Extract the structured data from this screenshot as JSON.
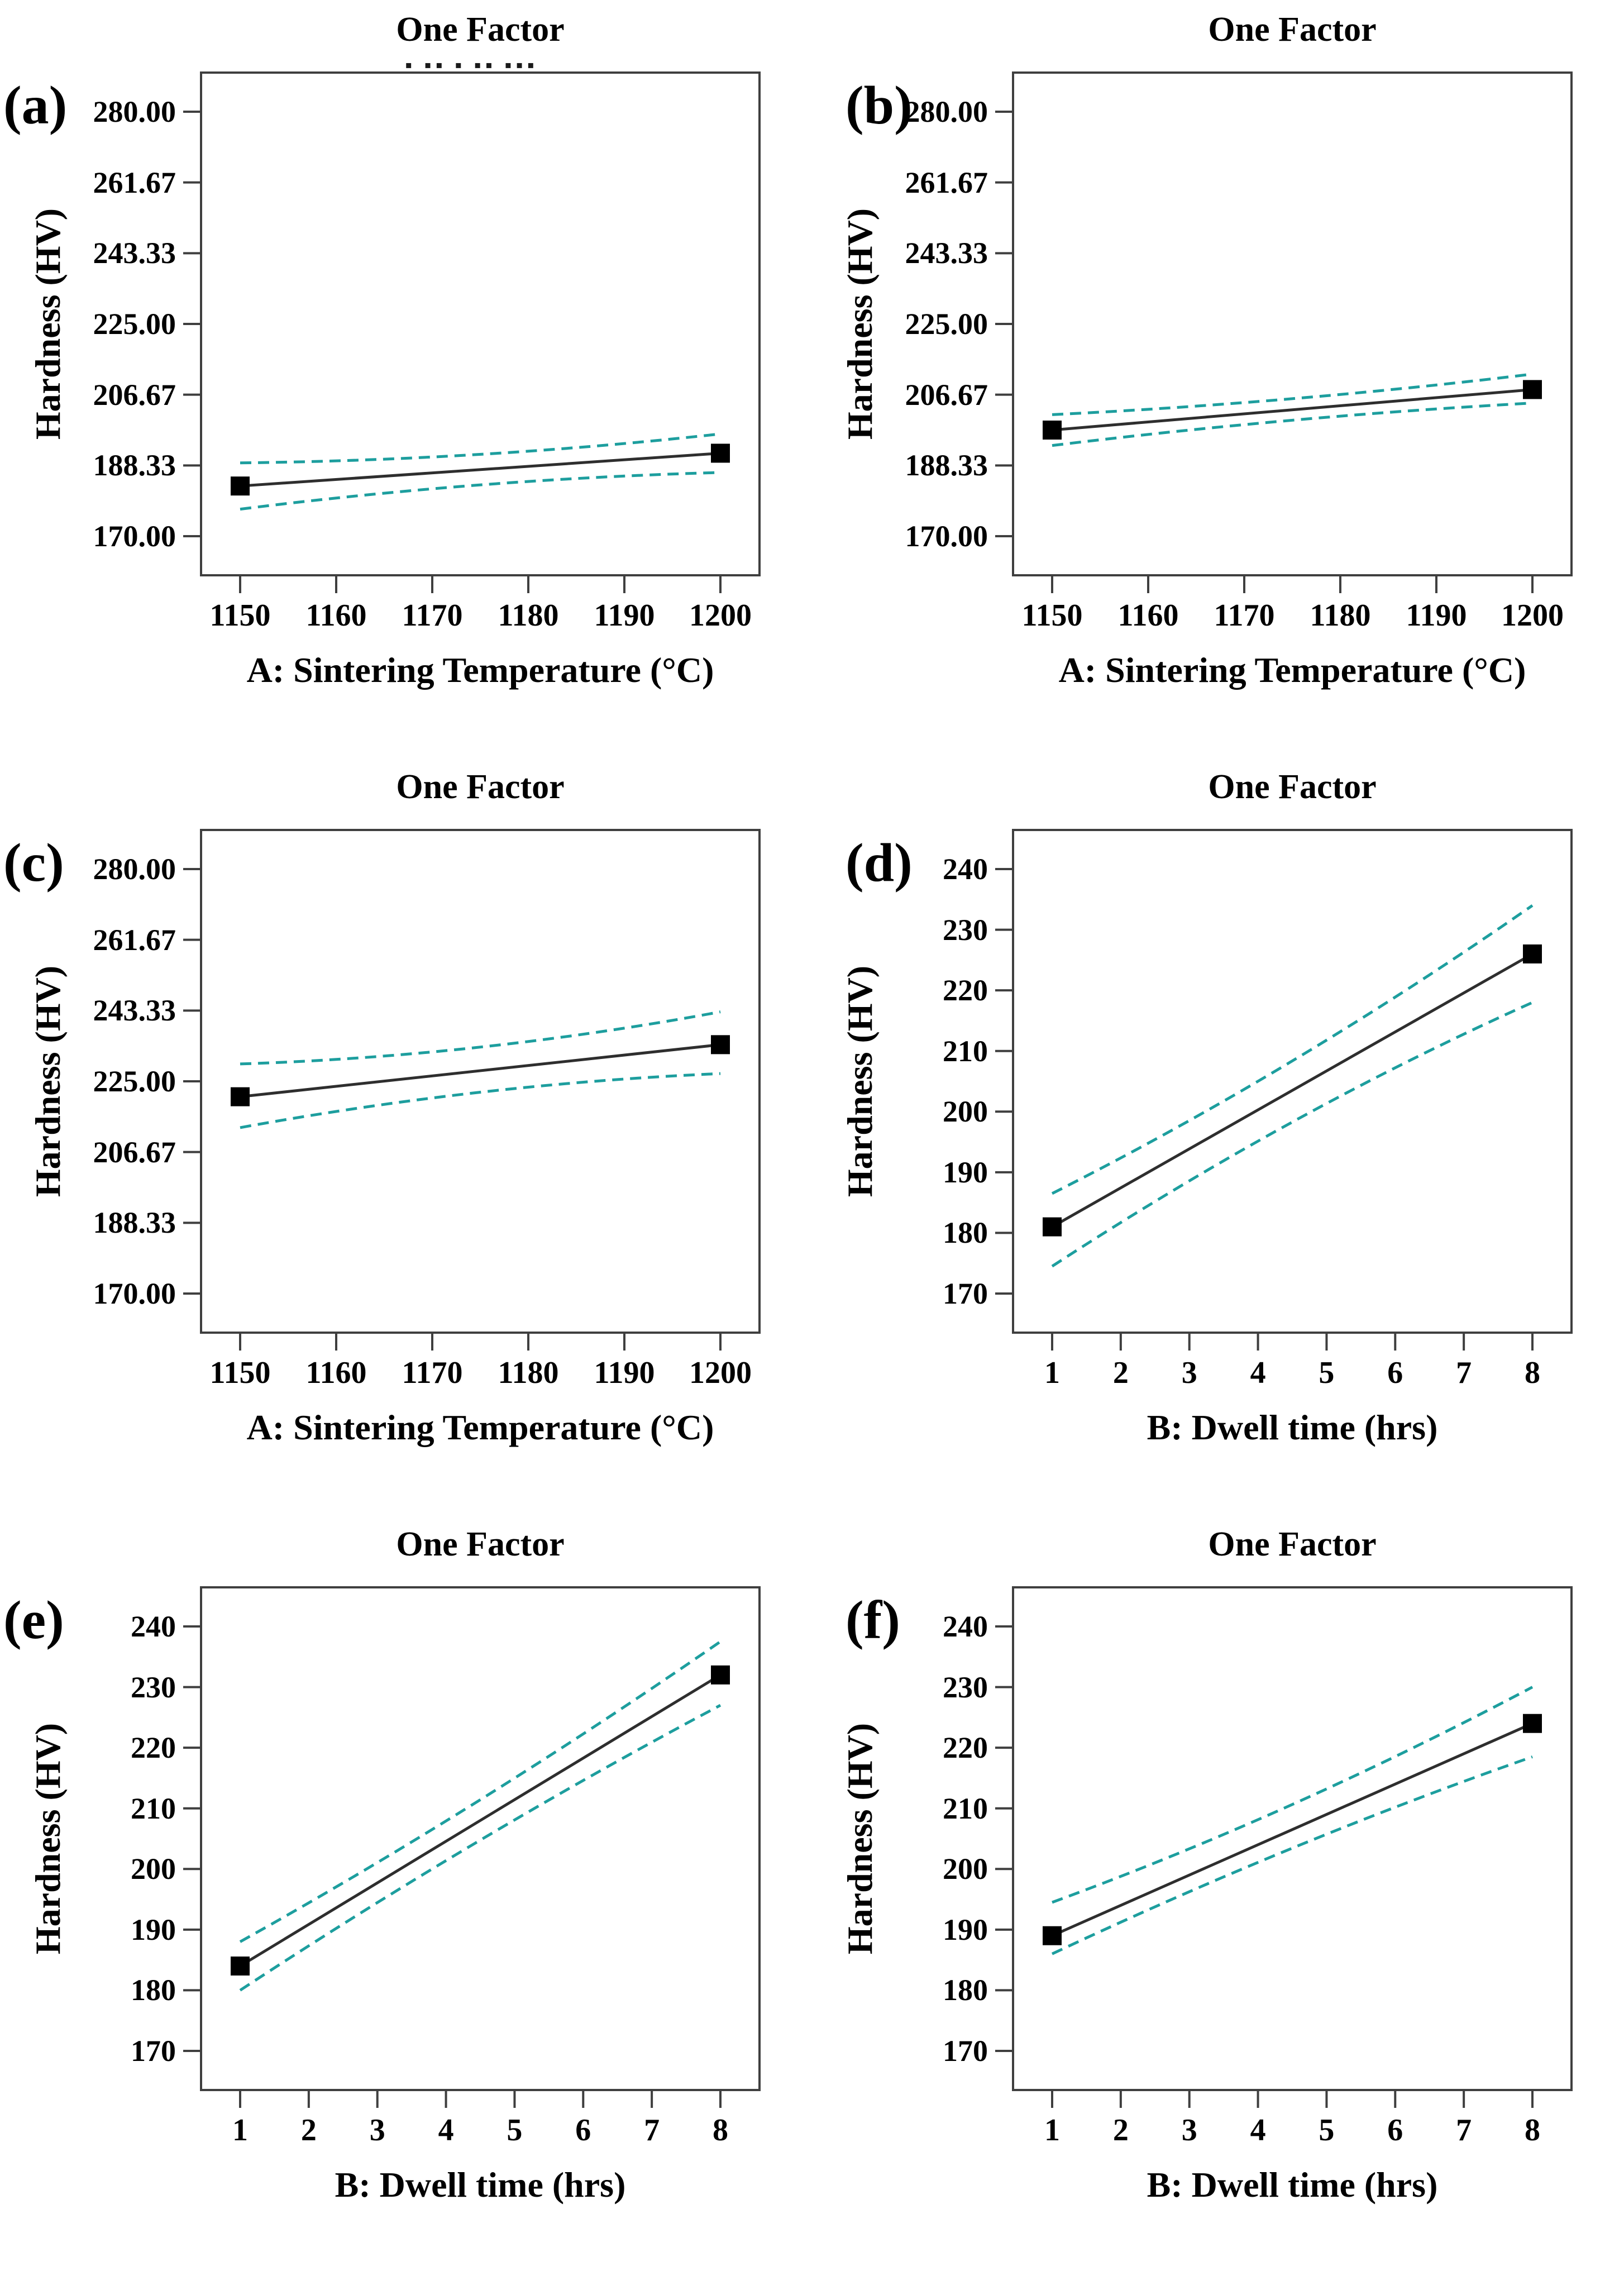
{
  "style": {
    "background": "#ffffff",
    "axis_color": "#3f3f3f",
    "text_color": "#000000",
    "mean_line_color": "#2e2e2e",
    "ci_line_color": "#1d9e9e",
    "marker_color": "#000000"
  },
  "chart_data": [
    {
      "type": "line",
      "panel_label": "(a)",
      "title": "One Factor",
      "title_artifact": "▪ ▪▪ ▪ ▪▪ ▪▪▪",
      "xlabel": "A: Sintering Temperature (°C)",
      "ylabel": "Hardness (HV)",
      "x_ticks": [
        "1150",
        "1160",
        "1170",
        "1180",
        "1190",
        "1200"
      ],
      "y_ticks": [
        "280.00",
        "261.67",
        "243.33",
        "225.00",
        "206.67",
        "188.33",
        "170.00"
      ],
      "xlim": [
        1150,
        1200
      ],
      "ylim": [
        170,
        280
      ],
      "legend": "none",
      "grid": false,
      "series": [
        {
          "name": "mean",
          "x": [
            1150,
            1200
          ],
          "values": [
            183.0,
            191.5
          ]
        },
        {
          "name": "ci_upper",
          "x": [
            1150,
            1200
          ],
          "values": [
            189.0,
            196.5
          ]
        },
        {
          "name": "ci_lower",
          "x": [
            1150,
            1200
          ],
          "values": [
            177.0,
            186.5
          ]
        }
      ]
    },
    {
      "type": "line",
      "panel_label": "(b)",
      "title": "One Factor",
      "title_artifact": "",
      "xlabel": "A: Sintering Temperature (°C)",
      "ylabel": "Hardness (HV)",
      "x_ticks": [
        "1150",
        "1160",
        "1170",
        "1180",
        "1190",
        "1200"
      ],
      "y_ticks": [
        "280.00",
        "261.67",
        "243.33",
        "225.00",
        "206.67",
        "188.33",
        "170.00"
      ],
      "xlim": [
        1150,
        1200
      ],
      "ylim": [
        170,
        280
      ],
      "legend": "none",
      "grid": false,
      "series": [
        {
          "name": "mean",
          "x": [
            1150,
            1200
          ],
          "values": [
            197.5,
            208.0
          ]
        },
        {
          "name": "ci_upper",
          "x": [
            1150,
            1200
          ],
          "values": [
            201.5,
            212.0
          ]
        },
        {
          "name": "ci_lower",
          "x": [
            1150,
            1200
          ],
          "values": [
            193.5,
            204.5
          ]
        }
      ]
    },
    {
      "type": "line",
      "panel_label": "(c)",
      "title": "One Factor",
      "title_artifact": "",
      "xlabel": "A: Sintering Temperature (°C)",
      "ylabel": "Hardness (HV)",
      "x_ticks": [
        "1150",
        "1160",
        "1170",
        "1180",
        "1190",
        "1200"
      ],
      "y_ticks": [
        "280.00",
        "261.67",
        "243.33",
        "225.00",
        "206.67",
        "188.33",
        "170.00"
      ],
      "xlim": [
        1150,
        1200
      ],
      "ylim": [
        170,
        280
      ],
      "legend": "none",
      "grid": false,
      "series": [
        {
          "name": "mean",
          "x": [
            1150,
            1200
          ],
          "values": [
            221.0,
            234.5
          ]
        },
        {
          "name": "ci_upper",
          "x": [
            1150,
            1200
          ],
          "values": [
            229.5,
            243.0
          ]
        },
        {
          "name": "ci_lower",
          "x": [
            1150,
            1200
          ],
          "values": [
            213.0,
            227.0
          ]
        }
      ]
    },
    {
      "type": "line",
      "panel_label": "(d)",
      "title": "One Factor",
      "title_artifact": "",
      "xlabel": "B: Dwell time (hrs)",
      "ylabel": "Hardness (HV)",
      "x_ticks": [
        "1",
        "2",
        "3",
        "4",
        "5",
        "6",
        "7",
        "8"
      ],
      "y_ticks": [
        "240",
        "230",
        "220",
        "210",
        "200",
        "190",
        "180",
        "170"
      ],
      "xlim": [
        1,
        8
      ],
      "ylim": [
        170,
        240
      ],
      "legend": "none",
      "grid": false,
      "series": [
        {
          "name": "mean",
          "x": [
            1,
            8
          ],
          "values": [
            181.0,
            226.0
          ]
        },
        {
          "name": "ci_upper",
          "x": [
            1,
            8
          ],
          "values": [
            186.5,
            234.0
          ]
        },
        {
          "name": "ci_lower",
          "x": [
            1,
            8
          ],
          "values": [
            174.5,
            218.0
          ]
        }
      ]
    },
    {
      "type": "line",
      "panel_label": "(e)",
      "title": "One Factor",
      "title_artifact": "",
      "xlabel": "B: Dwell time (hrs)",
      "ylabel": "Hardness (HV)",
      "x_ticks": [
        "1",
        "2",
        "3",
        "4",
        "5",
        "6",
        "7",
        "8"
      ],
      "y_ticks": [
        "240",
        "230",
        "220",
        "210",
        "200",
        "190",
        "180",
        "170"
      ],
      "xlim": [
        1,
        8
      ],
      "ylim": [
        170,
        240
      ],
      "legend": "none",
      "grid": false,
      "series": [
        {
          "name": "mean",
          "x": [
            1,
            8
          ],
          "values": [
            184.0,
            232.0
          ]
        },
        {
          "name": "ci_upper",
          "x": [
            1,
            8
          ],
          "values": [
            188.0,
            237.5
          ]
        },
        {
          "name": "ci_lower",
          "x": [
            1,
            8
          ],
          "values": [
            180.0,
            227.0
          ]
        }
      ]
    },
    {
      "type": "line",
      "panel_label": "(f)",
      "title": "One Factor",
      "title_artifact": "",
      "xlabel": "B: Dwell time (hrs)",
      "ylabel": "Hardness (HV)",
      "x_ticks": [
        "1",
        "2",
        "3",
        "4",
        "5",
        "6",
        "7",
        "8"
      ],
      "y_ticks": [
        "240",
        "230",
        "220",
        "210",
        "200",
        "190",
        "180",
        "170"
      ],
      "xlim": [
        1,
        8
      ],
      "ylim": [
        170,
        240
      ],
      "legend": "none",
      "grid": false,
      "series": [
        {
          "name": "mean",
          "x": [
            1,
            8
          ],
          "values": [
            189.0,
            224.0
          ]
        },
        {
          "name": "ci_upper",
          "x": [
            1,
            8
          ],
          "values": [
            194.5,
            230.0
          ]
        },
        {
          "name": "ci_lower",
          "x": [
            1,
            8
          ],
          "values": [
            186.0,
            218.5
          ]
        }
      ]
    }
  ]
}
